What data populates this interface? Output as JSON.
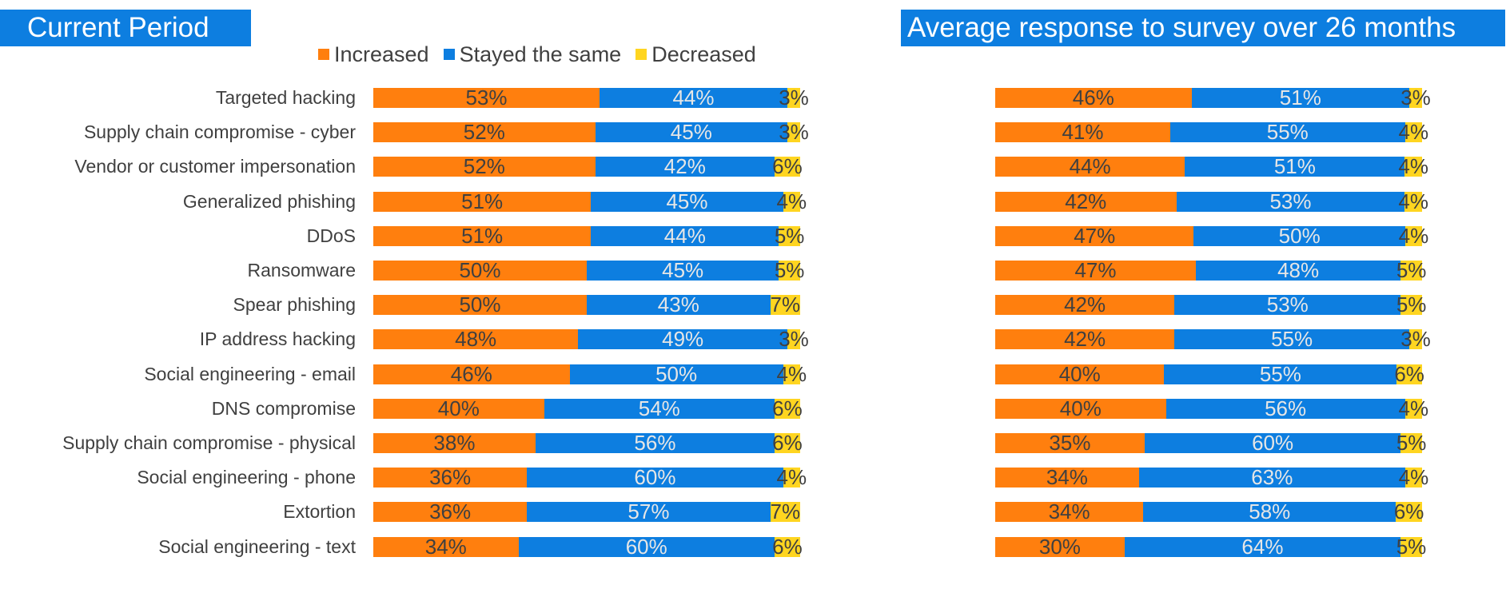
{
  "titles": {
    "left": "Current Period",
    "right": "Average response to survey over 26 months"
  },
  "legend": [
    {
      "name": "Increased",
      "color": "#ff7f0e"
    },
    {
      "name": "Stayed the same",
      "color": "#0d7ee0"
    },
    {
      "name": "Decreased",
      "color": "#ffd520"
    }
  ],
  "chart_data": [
    {
      "type": "bar",
      "orientation": "horizontal",
      "stacked": "100%",
      "title": "Current Period",
      "categories": [
        "Targeted hacking",
        "Supply chain compromise - cyber",
        "Vendor or customer impersonation",
        "Generalized phishing",
        "DDoS",
        "Ransomware",
        "Spear phishing",
        "IP address hacking",
        "Social engineering - email",
        "DNS compromise",
        "Supply chain compromise - physical",
        "Social engineering - phone",
        "Extortion",
        "Social engineering - text"
      ],
      "series": [
        {
          "name": "Increased",
          "color": "#ff7f0e",
          "values": [
            53,
            52,
            52,
            51,
            51,
            50,
            50,
            48,
            46,
            40,
            38,
            36,
            36,
            34
          ]
        },
        {
          "name": "Stayed the same",
          "color": "#0d7ee0",
          "values": [
            44,
            45,
            42,
            45,
            44,
            45,
            43,
            49,
            50,
            54,
            56,
            60,
            57,
            60
          ]
        },
        {
          "name": "Decreased",
          "color": "#ffd520",
          "values": [
            3,
            3,
            6,
            4,
            5,
            5,
            7,
            3,
            4,
            6,
            6,
            4,
            7,
            6
          ]
        }
      ],
      "xlim": [
        0,
        100
      ],
      "legend_position": "top"
    },
    {
      "type": "bar",
      "orientation": "horizontal",
      "stacked": "100%",
      "title": "Average response to survey over 26 months",
      "categories": [
        "Targeted hacking",
        "Supply chain compromise - cyber",
        "Vendor or customer impersonation",
        "Generalized phishing",
        "DDoS",
        "Ransomware",
        "Spear phishing",
        "IP address hacking",
        "Social engineering - email",
        "DNS compromise",
        "Supply chain compromise - physical",
        "Social engineering - phone",
        "Extortion",
        "Social engineering - text"
      ],
      "series": [
        {
          "name": "Increased",
          "color": "#ff7f0e",
          "values": [
            46,
            41,
            44,
            42,
            47,
            47,
            42,
            42,
            40,
            40,
            35,
            34,
            34,
            30
          ]
        },
        {
          "name": "Stayed the same",
          "color": "#0d7ee0",
          "values": [
            51,
            55,
            51,
            53,
            50,
            48,
            53,
            55,
            55,
            56,
            60,
            63,
            58,
            64
          ]
        },
        {
          "name": "Decreased",
          "color": "#ffd520",
          "values": [
            3,
            4,
            4,
            4,
            4,
            5,
            5,
            3,
            6,
            4,
            5,
            4,
            6,
            5
          ]
        }
      ],
      "xlim": [
        0,
        100
      ]
    }
  ]
}
